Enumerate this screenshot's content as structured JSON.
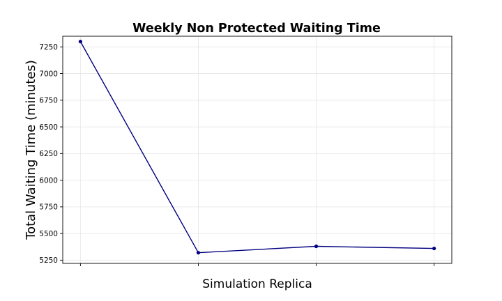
{
  "chart_data": {
    "type": "line",
    "title": "Weekly Non Protected Waiting Time",
    "xlabel": "Simulation Replica",
    "ylabel": "Total Waiting Time (minutes)",
    "x": [
      1,
      2,
      3,
      4
    ],
    "x_tick_labels_shown": false,
    "ylim": [
      5220,
      7350
    ],
    "yticks": [
      5250,
      5500,
      5750,
      6000,
      6250,
      6500,
      6750,
      7000,
      7250
    ],
    "grid": true,
    "legend": "none",
    "series": [
      {
        "color": "#000080",
        "marker": "circle",
        "values": [
          7300,
          5320,
          5380,
          5360
        ]
      }
    ]
  }
}
